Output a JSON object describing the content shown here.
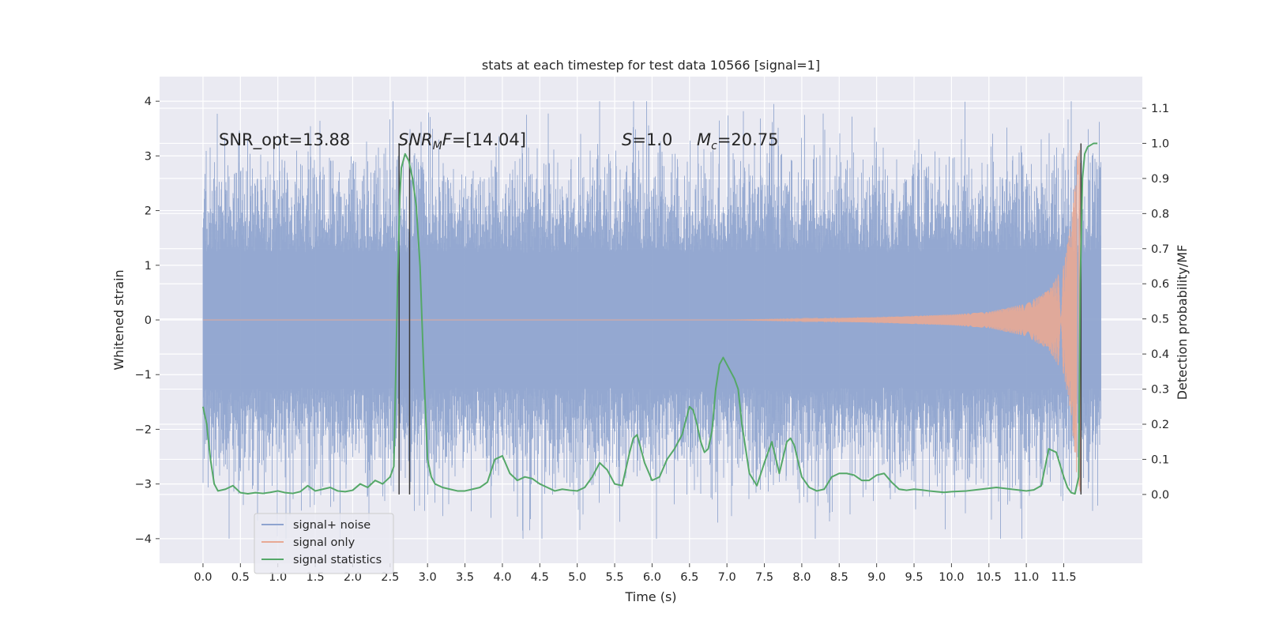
{
  "chart_data": {
    "type": "line",
    "title": "stats at each timestep for test data 10566 [signal=1]",
    "xlabel": "Time (s)",
    "ylabel": "Whitened strain",
    "ylabel_right": "Detection probability/MF",
    "xlim": [
      -0.58,
      12.55
    ],
    "ylim": [
      -4.45,
      4.45
    ],
    "ylim_right": [
      -0.196,
      1.19
    ],
    "x_ticks": [
      0.0,
      0.5,
      1.0,
      1.5,
      2.0,
      2.5,
      3.0,
      3.5,
      4.0,
      4.5,
      5.0,
      5.5,
      6.0,
      6.5,
      7.0,
      7.5,
      8.0,
      8.5,
      9.0,
      9.5,
      10.0,
      10.5,
      11.0,
      11.5
    ],
    "x_tick_labels": [
      "0.0",
      "0.5",
      "1.0",
      "1.5",
      "2.0",
      "2.5",
      "3.0",
      "3.5",
      "4.0",
      "4.5",
      "5.0",
      "5.5",
      "6.0",
      "6.5",
      "7.0",
      "7.5",
      "8.0",
      "8.5",
      "9.0",
      "9.5",
      "10.0",
      "10.5",
      "11.0",
      "11.5"
    ],
    "y_ticks": [
      -4,
      -3,
      -2,
      -1,
      0,
      1,
      2,
      3,
      4
    ],
    "y_tick_labels": [
      "−4",
      "−3",
      "−2",
      "−1",
      "0",
      "1",
      "2",
      "3",
      "4"
    ],
    "y_ticks_right": [
      0.0,
      0.1,
      0.2,
      0.3,
      0.4,
      0.5,
      0.6,
      0.7,
      0.8,
      0.9,
      1.0,
      1.1
    ],
    "y_tick_labels_right": [
      "0.0",
      "0.1",
      "0.2",
      "0.3",
      "0.4",
      "0.5",
      "0.6",
      "0.7",
      "0.8",
      "0.9",
      "1.0",
      "1.1"
    ],
    "grid": true,
    "legend_position": "lower-left",
    "annotations": {
      "snr_opt": "SNR_opt=13.88",
      "snr_mf_prefix": "SNR",
      "snr_mf_sub": "M",
      "snr_mf_mid": "F",
      "snr_mf_value": "=[14.04]",
      "s_sym": "S",
      "s_value": "=1.0",
      "mc_sym": "M",
      "mc_sub": "c",
      "mc_value": "=20.75"
    },
    "vertical_markers": [
      2.62,
      2.76,
      11.73
    ],
    "series": [
      {
        "name": "signal+ noise",
        "color": "#8fa4cf",
        "axis": "left",
        "x_range": [
          0.0,
          12.0
        ],
        "typical_abs_max": 1.3,
        "peak_abs_max": 4.0,
        "description_values": [
          3.3,
          -3.0,
          2.5,
          3.5,
          -4.0,
          4.0,
          -3.5,
          3.7,
          -4.1,
          3.0
        ]
      },
      {
        "name": "signal only",
        "color": "#e8a994",
        "axis": "left",
        "x_range": [
          0.0,
          11.73
        ],
        "chirp_envelope": [
          [
            7.0,
            0.0
          ],
          [
            8.0,
            0.02
          ],
          [
            9.0,
            0.05
          ],
          [
            10.0,
            0.1
          ],
          [
            10.5,
            0.15
          ],
          [
            11.0,
            0.3
          ],
          [
            11.3,
            0.55
          ],
          [
            11.5,
            1.0
          ],
          [
            11.6,
            1.8
          ],
          [
            11.68,
            3.0
          ],
          [
            11.73,
            3.2
          ]
        ]
      },
      {
        "name": "signal statistics",
        "color": "#55a868",
        "axis": "right",
        "x": [
          0.0,
          0.05,
          0.1,
          0.15,
          0.2,
          0.3,
          0.4,
          0.5,
          0.6,
          0.7,
          0.8,
          0.9,
          1.0,
          1.1,
          1.2,
          1.3,
          1.4,
          1.5,
          1.6,
          1.7,
          1.8,
          1.9,
          2.0,
          2.1,
          2.2,
          2.3,
          2.4,
          2.5,
          2.55,
          2.6,
          2.63,
          2.65,
          2.7,
          2.75,
          2.8,
          2.85,
          2.9,
          2.95,
          3.0,
          3.05,
          3.1,
          3.2,
          3.3,
          3.4,
          3.5,
          3.6,
          3.7,
          3.8,
          3.9,
          4.0,
          4.1,
          4.2,
          4.3,
          4.4,
          4.5,
          4.6,
          4.7,
          4.8,
          4.9,
          5.0,
          5.1,
          5.2,
          5.3,
          5.4,
          5.5,
          5.6,
          5.7,
          5.75,
          5.8,
          5.9,
          6.0,
          6.1,
          6.2,
          6.3,
          6.4,
          6.5,
          6.55,
          6.6,
          6.65,
          6.7,
          6.75,
          6.8,
          6.85,
          6.9,
          6.95,
          7.0,
          7.05,
          7.1,
          7.15,
          7.2,
          7.3,
          7.4,
          7.5,
          7.6,
          7.7,
          7.8,
          7.85,
          7.9,
          8.0,
          8.1,
          8.2,
          8.3,
          8.4,
          8.5,
          8.6,
          8.7,
          8.8,
          8.9,
          9.0,
          9.1,
          9.2,
          9.3,
          9.4,
          9.5,
          9.6,
          9.7,
          9.8,
          9.9,
          10.0,
          10.2,
          10.4,
          10.6,
          10.8,
          11.0,
          11.1,
          11.2,
          11.3,
          11.4,
          11.5,
          11.55,
          11.6,
          11.65,
          11.7,
          11.72,
          11.75,
          11.78,
          11.82,
          11.9,
          11.95
        ],
        "values": [
          0.25,
          0.2,
          0.1,
          0.03,
          0.01,
          0.015,
          0.025,
          0.005,
          0.002,
          0.005,
          0.003,
          0.006,
          0.01,
          0.005,
          0.003,
          0.008,
          0.025,
          0.01,
          0.015,
          0.02,
          0.01,
          0.008,
          0.012,
          0.03,
          0.02,
          0.04,
          0.03,
          0.05,
          0.08,
          0.6,
          0.85,
          0.93,
          0.97,
          0.95,
          0.9,
          0.82,
          0.65,
          0.35,
          0.1,
          0.05,
          0.03,
          0.02,
          0.015,
          0.01,
          0.01,
          0.015,
          0.02,
          0.035,
          0.1,
          0.11,
          0.06,
          0.04,
          0.05,
          0.045,
          0.03,
          0.02,
          0.01,
          0.015,
          0.012,
          0.01,
          0.02,
          0.05,
          0.09,
          0.07,
          0.03,
          0.025,
          0.12,
          0.16,
          0.17,
          0.09,
          0.04,
          0.05,
          0.1,
          0.13,
          0.17,
          0.25,
          0.24,
          0.2,
          0.15,
          0.12,
          0.13,
          0.18,
          0.3,
          0.37,
          0.39,
          0.37,
          0.35,
          0.33,
          0.3,
          0.2,
          0.06,
          0.025,
          0.09,
          0.15,
          0.06,
          0.15,
          0.16,
          0.14,
          0.05,
          0.02,
          0.01,
          0.015,
          0.05,
          0.06,
          0.06,
          0.055,
          0.04,
          0.04,
          0.055,
          0.06,
          0.035,
          0.015,
          0.012,
          0.015,
          0.013,
          0.01,
          0.008,
          0.006,
          0.008,
          0.01,
          0.015,
          0.02,
          0.015,
          0.01,
          0.013,
          0.025,
          0.13,
          0.12,
          0.05,
          0.02,
          0.005,
          0.002,
          0.05,
          0.6,
          0.9,
          0.97,
          0.99,
          1.0,
          1.0
        ]
      }
    ]
  }
}
